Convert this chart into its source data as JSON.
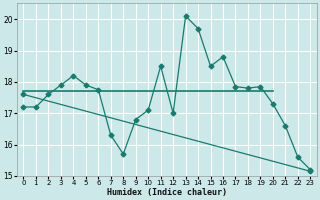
{
  "xlabel": "Humidex (Indice chaleur)",
  "bg_color": "#cce8e8",
  "grid_color": "#ffffff",
  "line_color": "#1a7a6e",
  "xlim": [
    -0.5,
    23.5
  ],
  "ylim": [
    15,
    20.5
  ],
  "yticks": [
    15,
    16,
    17,
    18,
    19,
    20
  ],
  "xticks": [
    0,
    1,
    2,
    3,
    4,
    5,
    6,
    7,
    8,
    9,
    10,
    11,
    12,
    13,
    14,
    15,
    16,
    17,
    18,
    19,
    20,
    21,
    22,
    23
  ],
  "line1_x": [
    0,
    1,
    2,
    3,
    4,
    5,
    6,
    7,
    8,
    9,
    10,
    11,
    12,
    13,
    14,
    15,
    16,
    17,
    18,
    19,
    20,
    21,
    22,
    23
  ],
  "line1_y": [
    17.2,
    17.2,
    17.6,
    17.9,
    18.2,
    17.9,
    17.75,
    16.3,
    15.7,
    16.8,
    17.1,
    18.5,
    17.0,
    20.1,
    19.7,
    18.5,
    18.8,
    17.85,
    17.8,
    17.85,
    17.3,
    16.6,
    15.6,
    15.2
  ],
  "flat_line_x": [
    0,
    20
  ],
  "flat_line_y": [
    17.7,
    17.7
  ],
  "trend_x": [
    0,
    23
  ],
  "trend_y": [
    17.6,
    15.15
  ],
  "marker": "D",
  "markersize": 2.5,
  "tick_fontsize": 5,
  "xlabel_fontsize": 6
}
